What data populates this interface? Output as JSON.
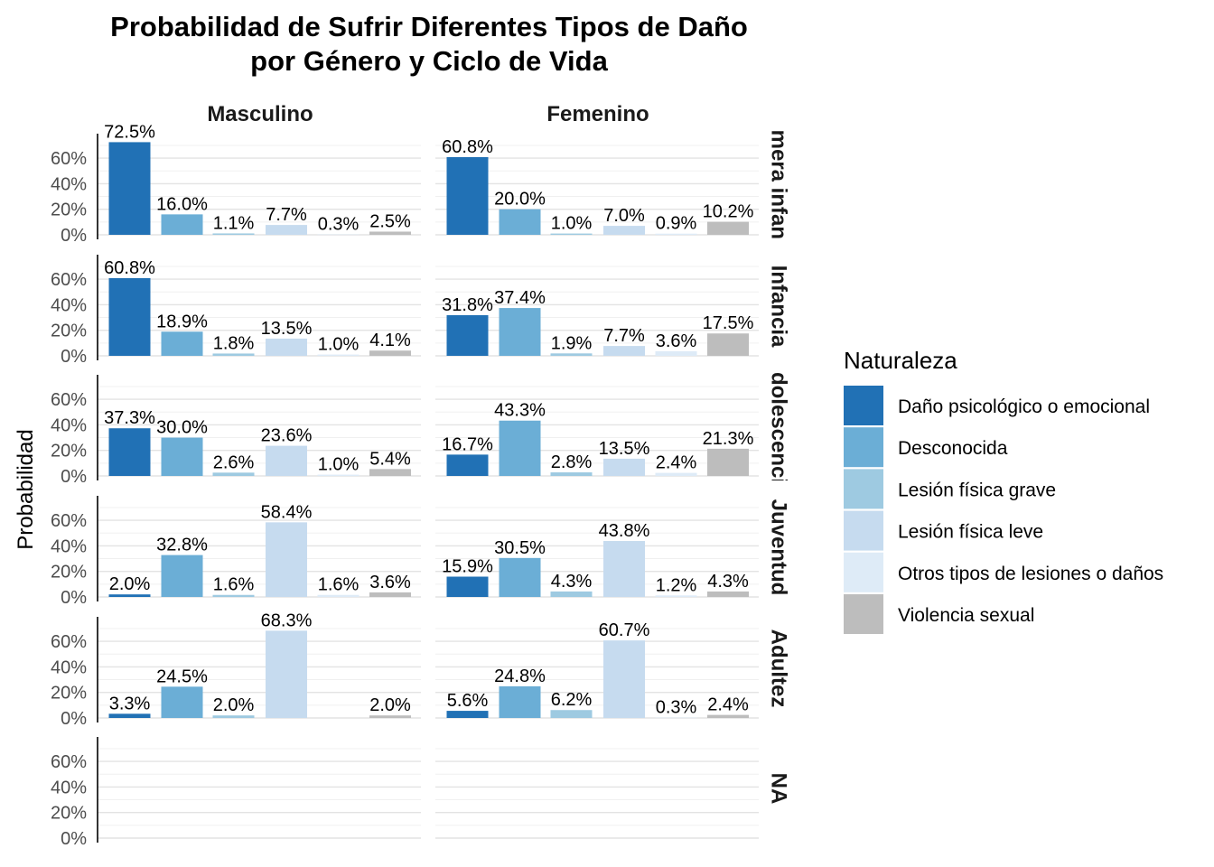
{
  "chart_data": {
    "type": "bar",
    "title": [
      "Probabilidad de Sufrir Diferentes Tipos de Daño",
      "por Género y Ciclo de Vida"
    ],
    "ylabel": "Probabilidad",
    "xlabel": "",
    "ylim": [
      0,
      0.78
    ],
    "yticks": [
      0,
      0.2,
      0.4,
      0.6
    ],
    "ytick_labels": [
      "0%",
      "20%",
      "40%",
      "60%"
    ],
    "grid": true,
    "columns": [
      "Masculino",
      "Femenino"
    ],
    "rows": [
      "Primera infancia",
      "Infancia",
      "Adolescencia",
      "Juventud",
      "Adultez",
      "NA"
    ],
    "legend": {
      "title": "Naturaleza",
      "position": "right",
      "categories": [
        "Daño psicológico o emocional",
        "Desconocida",
        "Lesión física grave",
        "Lesión física leve",
        "Otros tipos de lesiones o daños",
        "Violencia sexual"
      ],
      "colors": [
        "#2171b5",
        "#6baed6",
        "#9ecae1",
        "#c6dbef",
        "#deebf7",
        "#bdbdbd"
      ]
    },
    "panels": {
      "Masculino": [
        [
          0.725,
          0.16,
          0.011,
          0.077,
          0.003,
          0.025
        ],
        [
          0.608,
          0.189,
          0.018,
          0.135,
          0.01,
          0.041
        ],
        [
          0.373,
          0.3,
          0.026,
          0.236,
          0.01,
          0.054
        ],
        [
          0.02,
          0.328,
          0.016,
          0.584,
          0.016,
          0.036
        ],
        [
          0.033,
          0.245,
          0.02,
          0.683,
          null,
          0.02
        ],
        [
          null,
          null,
          null,
          null,
          null,
          null
        ]
      ],
      "Femenino": [
        [
          0.608,
          0.2,
          0.01,
          0.07,
          0.009,
          0.102
        ],
        [
          0.318,
          0.374,
          0.019,
          0.077,
          0.036,
          0.175
        ],
        [
          0.167,
          0.433,
          0.028,
          0.135,
          0.024,
          0.213
        ],
        [
          0.159,
          0.305,
          0.043,
          0.438,
          0.012,
          0.043
        ],
        [
          0.056,
          0.248,
          0.062,
          0.607,
          0.003,
          0.024
        ],
        [
          null,
          null,
          null,
          null,
          null,
          null
        ]
      ]
    },
    "labels": {
      "Masculino": [
        [
          "72.5%",
          "16.0%",
          "1.1%",
          "7.7%",
          "0.3%",
          "2.5%"
        ],
        [
          "60.8%",
          "18.9%",
          "1.8%",
          "13.5%",
          "1.0%",
          "4.1%"
        ],
        [
          "37.3%",
          "30.0%",
          "2.6%",
          "23.6%",
          "1.0%",
          "5.4%"
        ],
        [
          "2.0%",
          "32.8%",
          "1.6%",
          "58.4%",
          "1.6%",
          "3.6%"
        ],
        [
          "3.3%",
          "24.5%",
          "2.0%",
          "68.3%",
          "",
          "2.0%"
        ],
        [
          "",
          "",
          "",
          "",
          "",
          ""
        ]
      ],
      "Femenino": [
        [
          "60.8%",
          "20.0%",
          "1.0%",
          "7.0%",
          "0.9%",
          "10.2%"
        ],
        [
          "31.8%",
          "37.4%",
          "1.9%",
          "7.7%",
          "3.6%",
          "17.5%"
        ],
        [
          "16.7%",
          "43.3%",
          "2.8%",
          "13.5%",
          "2.4%",
          "21.3%"
        ],
        [
          "15.9%",
          "30.5%",
          "4.3%",
          "43.8%",
          "1.2%",
          "4.3%"
        ],
        [
          "5.6%",
          "24.8%",
          "6.2%",
          "60.7%",
          "0.3%",
          "2.4%"
        ],
        [
          "",
          "",
          "",
          "",
          "",
          ""
        ]
      ]
    }
  }
}
